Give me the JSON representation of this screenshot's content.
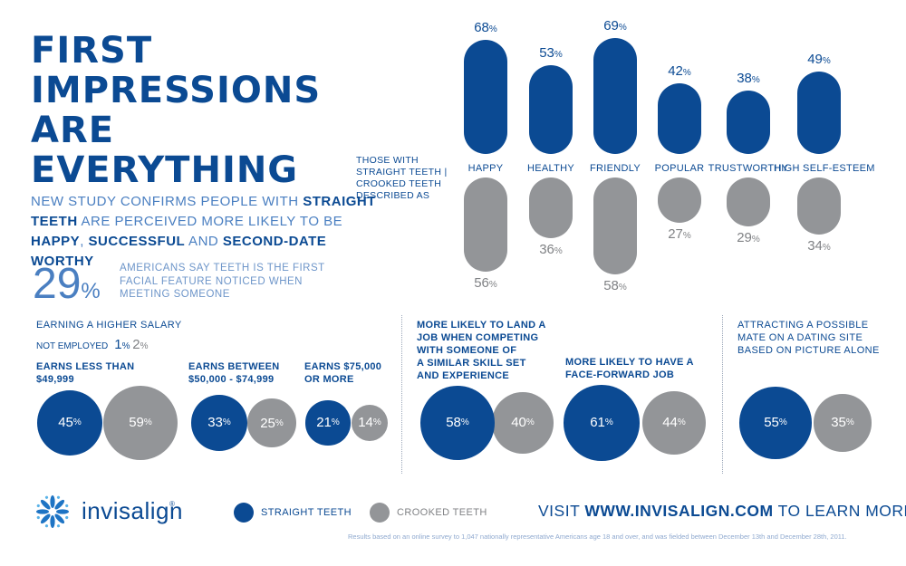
{
  "title_lines": [
    "FIRST",
    "IMPRESSIONS",
    "ARE",
    "EVERYTHING"
  ],
  "subtitle": {
    "p1": "NEW STUDY CONFIRMS PEOPLE WITH ",
    "b1": "STRAIGHT TEETH",
    "p2": " ARE PERCEIVED MORE LIKELY TO BE ",
    "b2": "HAPPY",
    "p3": ", ",
    "b3": "SUCCESSFUL",
    "p4": " AND ",
    "b4": "SECOND-DATE WORTHY"
  },
  "stat29": {
    "value": "29",
    "unit": "%",
    "text": "AMERICANS SAY TEETH IS THE FIRST FACIAL FEATURE NOTICED WHEN MEETING SOMEONE"
  },
  "bar_legend": [
    "THOSE WITH",
    "STRAIGHT TEETH |",
    "CROOKED TEETH",
    "DESCRIBED AS"
  ],
  "chart_data": [
    {
      "type": "bar",
      "categories": [
        "HAPPY",
        "HEALTHY",
        "FRIENDLY",
        "POPULAR",
        "TRUSTWORTHY",
        "HIGH SELF-ESTEEM"
      ],
      "series": [
        {
          "name": "STRAIGHT TEETH",
          "values": [
            68,
            53,
            69,
            42,
            38,
            49
          ]
        },
        {
          "name": "CROOKED TEETH",
          "values": [
            56,
            36,
            58,
            27,
            29,
            34
          ]
        }
      ],
      "unit": "%"
    },
    {
      "type": "bar",
      "title": "EARNING A HIGHER SALARY",
      "not_employed": {
        "label": "NOT EMPLOYED",
        "straight": 1,
        "crooked": 2
      },
      "categories": [
        "EARNS LESS THAN $49,999",
        "EARNS BETWEEN $50,000 - $74,999",
        "EARNS $75,000 OR MORE"
      ],
      "series": [
        {
          "name": "STRAIGHT TEETH",
          "values": [
            45,
            33,
            21
          ]
        },
        {
          "name": "CROOKED TEETH",
          "values": [
            59,
            25,
            14
          ]
        }
      ],
      "unit": "%"
    },
    {
      "type": "bar",
      "categories": [
        "MORE LIKELY TO LAND A JOB WHEN COMPETING WITH SOMEONE OF A SIMILAR SKILL SET AND EXPERIENCE",
        "MORE LIKELY TO HAVE A FACE-FORWARD JOB"
      ],
      "series": [
        {
          "name": "STRAIGHT TEETH",
          "values": [
            58,
            61
          ]
        },
        {
          "name": "CROOKED TEETH",
          "values": [
            40,
            44
          ]
        }
      ],
      "unit": "%"
    },
    {
      "type": "bar",
      "categories": [
        "ATTRACTING A POSSIBLE MATE ON A DATING SITE BASED ON PICTURE ALONE"
      ],
      "series": [
        {
          "name": "STRAIGHT TEETH",
          "values": [
            55
          ]
        },
        {
          "name": "CROOKED TEETH",
          "values": [
            35
          ]
        }
      ],
      "unit": "%"
    }
  ],
  "salary": {
    "title": "EARNING A HIGHER SALARY",
    "not_employed_label": "NOT EMPLOYED",
    "ne_straight": "1",
    "ne_crooked": "2",
    "g1_label": [
      "EARNS LESS THAN",
      "$49,999"
    ],
    "g2_label": [
      "EARNS BETWEEN",
      "$50,000 - $74,999"
    ],
    "g3_label": [
      "EARNS $75,000",
      "OR MORE"
    ]
  },
  "job": {
    "g1_label": [
      "MORE LIKELY TO LAND A",
      "JOB WHEN COMPETING",
      "WITH SOMEONE OF",
      "A SIMILAR SKILL SET",
      "AND EXPERIENCE"
    ],
    "g2_label": [
      "MORE LIKELY TO HAVE A",
      "FACE-FORWARD JOB"
    ]
  },
  "dating": {
    "label": [
      "ATTRACTING A POSSIBLE",
      "MATE ON A DATING SITE",
      "BASED ON PICTURE ALONE"
    ]
  },
  "colors": {
    "straight": "#0b4a93",
    "crooked": "#939598",
    "accent_light": "#4a7fc1"
  },
  "logo": {
    "text": "invisalign",
    "reg": "®",
    "icon": "starburst-logo-icon"
  },
  "legend": {
    "straight": "STRAIGHT TEETH",
    "crooked": "CROOKED TEETH"
  },
  "visit": {
    "pre": "VISIT ",
    "url": "WWW.INVISALIGN.COM",
    "post": " TO LEARN MORE"
  },
  "footnote": "Results based on an online survey to 1,047 nationally representative Americans age 18 and over, and was fielded between December 13th and December 28th, 2011."
}
